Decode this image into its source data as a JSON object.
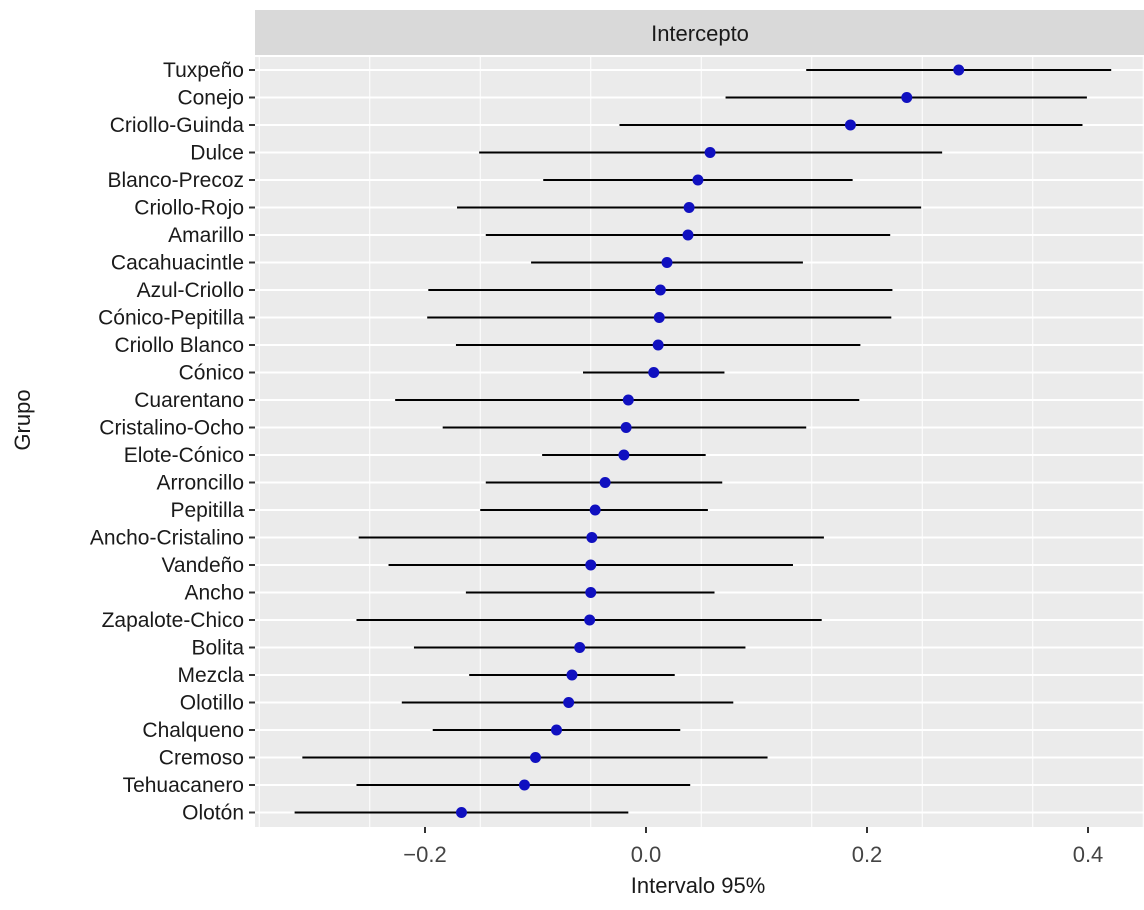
{
  "chart_data": {
    "type": "forest",
    "facet_title": "Intercepto",
    "xlabel": "Intervalo 95%",
    "ylabel": "Grupo",
    "xlim": [
      -0.35,
      0.45
    ],
    "x_ticks": [
      -0.2,
      0.0,
      0.2,
      0.4
    ],
    "x_tick_labels": [
      "−0.2",
      "0.0",
      "0.2",
      "0.4"
    ],
    "grid": true,
    "point_color": "#1010c0",
    "line_color": "#000000",
    "panel_background": "#ebebeb",
    "strip_background": "#d9d9d9",
    "groups": [
      {
        "label": "Tuxpeño",
        "estimate": 0.283,
        "low": 0.145,
        "high": 0.421
      },
      {
        "label": "Conejo",
        "estimate": 0.236,
        "low": 0.072,
        "high": 0.399
      },
      {
        "label": "Criollo-Guinda",
        "estimate": 0.185,
        "low": -0.024,
        "high": 0.395
      },
      {
        "label": "Dulce",
        "estimate": 0.058,
        "low": -0.151,
        "high": 0.268
      },
      {
        "label": "Blanco-Precoz",
        "estimate": 0.047,
        "low": -0.093,
        "high": 0.187
      },
      {
        "label": "Criollo-Rojo",
        "estimate": 0.039,
        "low": -0.171,
        "high": 0.249
      },
      {
        "label": "Amarillo",
        "estimate": 0.038,
        "low": -0.145,
        "high": 0.221
      },
      {
        "label": "Cacahuacintle",
        "estimate": 0.019,
        "low": -0.104,
        "high": 0.142
      },
      {
        "label": "Azul-Criollo",
        "estimate": 0.013,
        "low": -0.197,
        "high": 0.223
      },
      {
        "label": "Cónico-Pepitilla",
        "estimate": 0.012,
        "low": -0.198,
        "high": 0.222
      },
      {
        "label": "Criollo Blanco",
        "estimate": 0.011,
        "low": -0.172,
        "high": 0.194
      },
      {
        "label": "Cónico",
        "estimate": 0.007,
        "low": -0.057,
        "high": 0.071
      },
      {
        "label": "Cuarentano",
        "estimate": -0.016,
        "low": -0.227,
        "high": 0.193
      },
      {
        "label": "Cristalino-Ocho",
        "estimate": -0.018,
        "low": -0.184,
        "high": 0.145
      },
      {
        "label": "Elote-Cónico",
        "estimate": -0.02,
        "low": -0.094,
        "high": 0.054
      },
      {
        "label": "Arroncillo",
        "estimate": -0.037,
        "low": -0.145,
        "high": 0.069
      },
      {
        "label": "Pepitilla",
        "estimate": -0.046,
        "low": -0.15,
        "high": 0.056
      },
      {
        "label": "Ancho-Cristalino",
        "estimate": -0.049,
        "low": -0.26,
        "high": 0.161
      },
      {
        "label": "Vandeño",
        "estimate": -0.05,
        "low": -0.233,
        "high": 0.133
      },
      {
        "label": "Ancho",
        "estimate": -0.05,
        "low": -0.163,
        "high": 0.062
      },
      {
        "label": "Zapalote-Chico",
        "estimate": -0.051,
        "low": -0.262,
        "high": 0.159
      },
      {
        "label": "Bolita",
        "estimate": -0.06,
        "low": -0.21,
        "high": 0.09
      },
      {
        "label": "Mezcla",
        "estimate": -0.067,
        "low": -0.16,
        "high": 0.026
      },
      {
        "label": "Olotillo",
        "estimate": -0.07,
        "low": -0.221,
        "high": 0.079
      },
      {
        "label": "Chalqueno",
        "estimate": -0.081,
        "low": -0.193,
        "high": 0.031
      },
      {
        "label": "Cremoso",
        "estimate": -0.1,
        "low": -0.311,
        "high": 0.11
      },
      {
        "label": "Tehuacanero",
        "estimate": -0.11,
        "low": -0.262,
        "high": 0.04
      },
      {
        "label": "Olotón",
        "estimate": -0.167,
        "low": -0.318,
        "high": -0.016
      }
    ]
  }
}
